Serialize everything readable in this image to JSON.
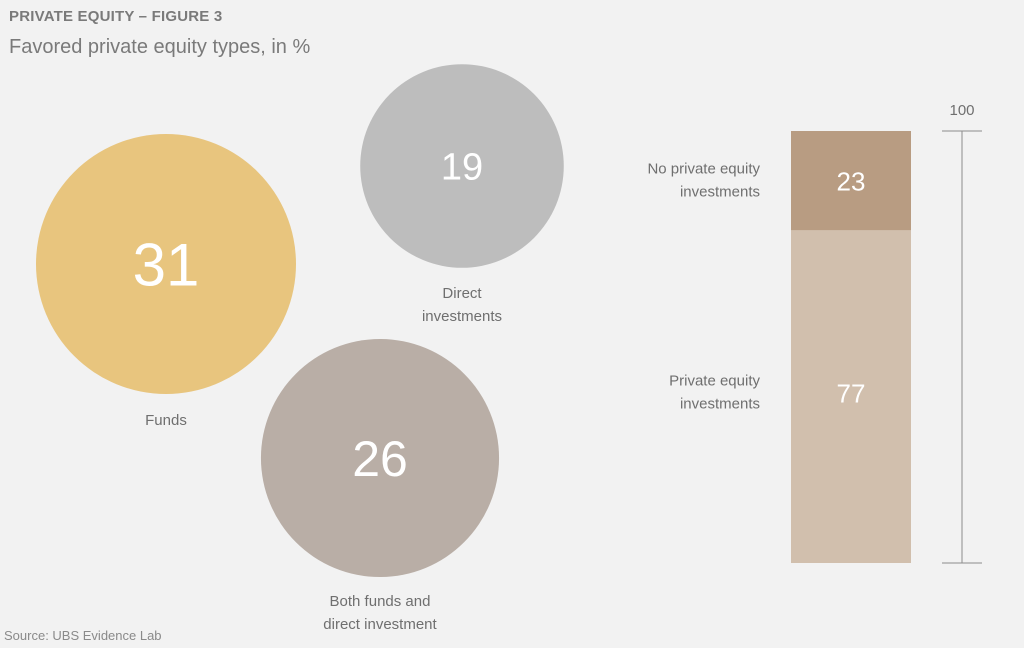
{
  "header": {
    "kicker": "PRIVATE EQUITY – FIGURE 3",
    "subtitle": "Favored private equity types, in %"
  },
  "source": "Source: UBS Evidence Lab",
  "chart_data": [
    {
      "type": "bubble",
      "unit": "%",
      "series": [
        {
          "label": "Funds",
          "value": 31,
          "color": "#e8c57e"
        },
        {
          "label": "Direct investments",
          "value": 19,
          "color": "#bdbdbd"
        },
        {
          "label": "Both funds and direct investment",
          "value": 26,
          "color": "#b9aea6"
        }
      ]
    },
    {
      "type": "bar",
      "stacked": true,
      "unit": "%",
      "scale_label": "100",
      "ylim": [
        0,
        100
      ],
      "segments": [
        {
          "label": "No private equity investments",
          "value": 23,
          "color": "#b89c82"
        },
        {
          "label": "Private equity investments",
          "value": 77,
          "color": "#d1bfad"
        }
      ]
    }
  ]
}
